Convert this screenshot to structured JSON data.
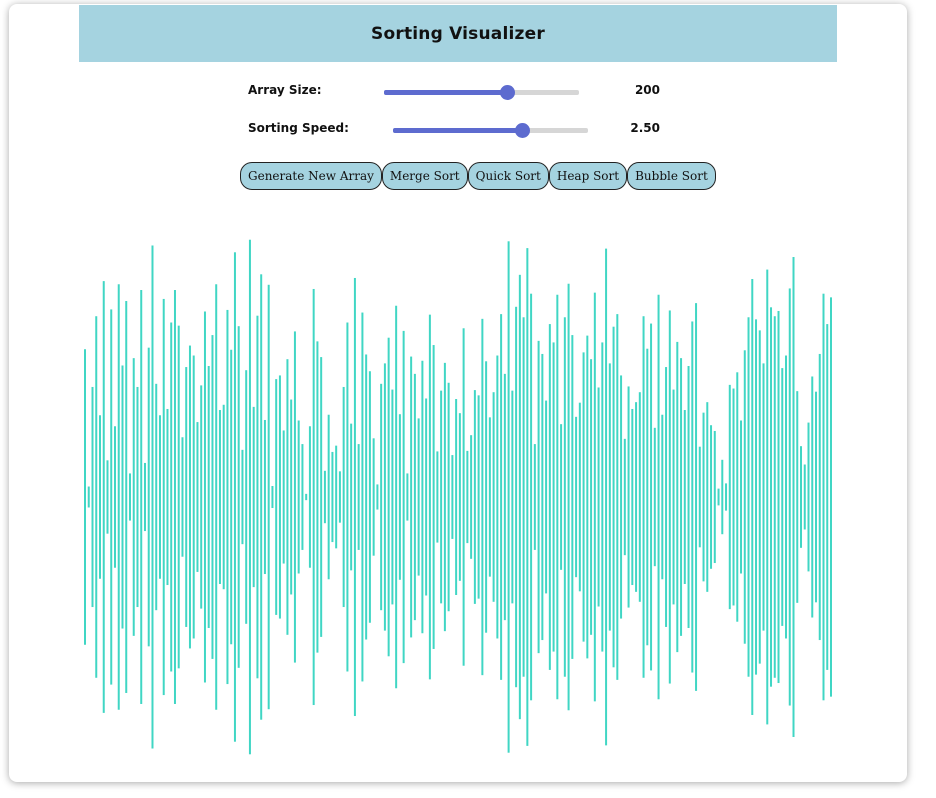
{
  "header": {
    "title": "Sorting Visualizer"
  },
  "controls": {
    "array_size": {
      "label": "Array Size:",
      "value": "200",
      "fraction": 0.63
    },
    "sorting_speed": {
      "label": "Sorting Speed:",
      "value": "2.50",
      "fraction": 0.66
    }
  },
  "buttons": {
    "generate": "Generate New Array",
    "merge": "Merge Sort",
    "quick": "Quick Sort",
    "heap": "Heap Sort",
    "bubble": "Bubble Sort"
  },
  "colors": {
    "header_bg": "#a5d3e0",
    "accent": "#5d6bcf",
    "bar": "#40d6c4"
  },
  "array": {
    "values": [
      282,
      20,
      210,
      345,
      156,
      412,
      70,
      358,
      135,
      406,
      251,
      374,
      45,
      265,
      210,
      395,
      65,
      285,
      480,
      216,
      156,
      378,
      168,
      333,
      395,
      327,
      114,
      248,
      289,
      270,
      143,
      213,
      354,
      250,
      309,
      406,
      166,
      176,
      357,
      281,
      467,
      326,
      90,
      242,
      491,
      172,
      346,
      425,
      147,
      405,
      21,
      225,
      232,
      127,
      263,
      186,
      316,
      146,
      101,
      6,
      135,
      397,
      297,
      267,
      50,
      157,
      86,
      98,
      49,
      210,
      333,
      140,
      418,
      101,
      352,
      272,
      240,
      112,
      24,
      216,
      255,
      304,
      205,
      365,
      158,
      317,
      45,
      268,
      235,
      150,
      260,
      188,
      348,
      290,
      87,
      203,
      256,
      218,
      80,
      187,
      160,
      322,
      88,
      118,
      204,
      194,
      340,
      259,
      152,
      200,
      270,
      349,
      235,
      488,
      203,
      363,
      424,
      343,
      475,
      388,
      101,
      298,
      273,
      184,
      330,
      295,
      386,
      139,
      343,
      407,
      309,
      153,
      180,
      276,
      308,
      263,
      390,
      209,
      295,
      474,
      255,
      325,
      349,
      232,
      111,
      211,
      168,
      181,
      200,
      345,
      283,
      331,
      132,
      386,
      157,
      248,
      356,
      205,
      296,
      265,
      166,
      250,
      335,
      370,
      96,
      161,
      181,
      137,
      126,
      16,
      71,
      26,
      214,
      207,
      238,
      146,
      280,
      343,
      416,
      339,
      318,
      255,
      434,
      362,
      345,
      355,
      246,
      270,
      398,
      458,
      202,
      97,
      62,
      142,
      230,
      201,
      273,
      388,
      330,
      381
    ]
  }
}
